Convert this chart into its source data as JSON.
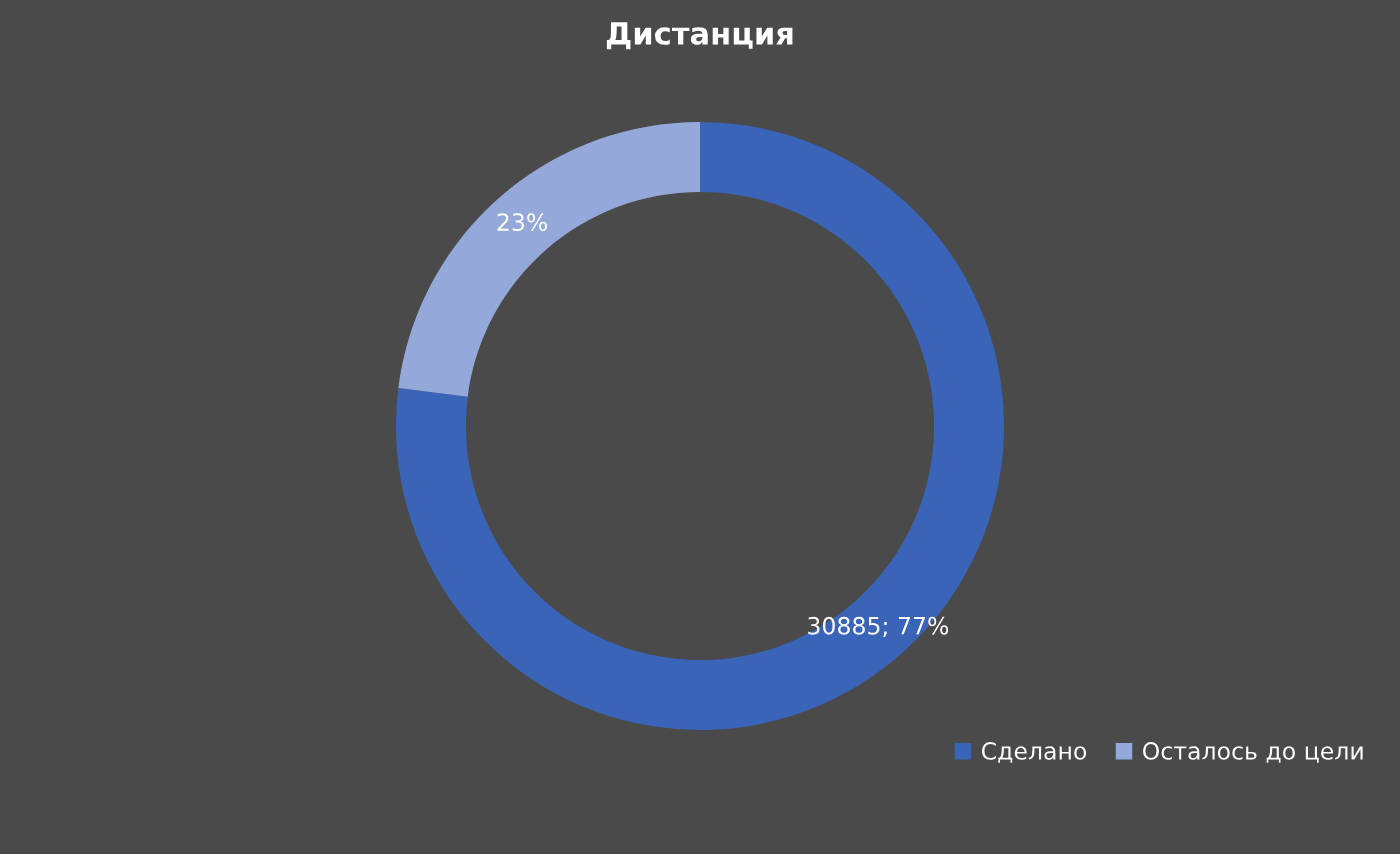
{
  "chart_data": {
    "type": "donut",
    "title": "Дистанция",
    "categories": [
      "Сделано",
      "Осталось до цели"
    ],
    "values": [
      77,
      23
    ],
    "colors": [
      "#3a64b8",
      "#94a9da"
    ],
    "value_labels": [
      "30885; 77%",
      "23%"
    ],
    "legend": "bottom right"
  }
}
